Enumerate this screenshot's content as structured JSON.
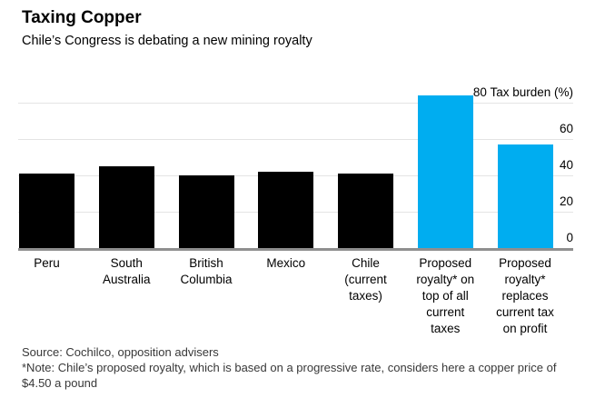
{
  "header": {
    "title": "Taxing Copper",
    "subtitle": "Chile’s Congress is debating a new mining royalty"
  },
  "chart_data": {
    "type": "bar",
    "title": "Taxing Copper",
    "subtitle": "Chile’s Congress is debating a new mining royalty",
    "ylabel": "Tax burden (%)",
    "xlabel": "",
    "ylim": [
      0,
      90
    ],
    "grid": true,
    "axis_side": "right",
    "legend": "none",
    "categories": [
      "Peru",
      "South Australia",
      "British Columbia",
      "Mexico",
      "Chile (current taxes)",
      "Proposed royalty* on top of all current taxes",
      "Proposed royalty* replaces current tax on profit"
    ],
    "category_lines": [
      [
        "Peru"
      ],
      [
        "South",
        "Australia"
      ],
      [
        "British",
        "Columbia"
      ],
      [
        "Mexico"
      ],
      [
        "Chile",
        "(current",
        "taxes)"
      ],
      [
        "Proposed",
        "royalty* on",
        "top of all",
        "current",
        "taxes"
      ],
      [
        "Proposed",
        "royalty*",
        "replaces",
        "current tax",
        "on profit"
      ]
    ],
    "values": [
      41,
      45,
      40,
      42,
      41,
      84,
      57
    ],
    "bar_colors": [
      "#000000",
      "#000000",
      "#000000",
      "#000000",
      "#000000",
      "#00adf0",
      "#00adf0"
    ],
    "yticks": [
      {
        "value": 0,
        "label": "0"
      },
      {
        "value": 20,
        "label": "20"
      },
      {
        "value": 40,
        "label": "40"
      },
      {
        "value": 60,
        "label": "60"
      },
      {
        "value": 80,
        "label": "80 Tax burden (%)"
      }
    ]
  },
  "footer": {
    "source": "Source: Cochilco, opposition advisers",
    "note": "*Note: Chile’s proposed royalty, which is based on a progressive rate, considers here a copper price of $4.50 a pound"
  },
  "colors": {
    "accent_blue": "#00adf0",
    "bar_black": "#000000",
    "gridline": "#e4e4e4",
    "baseline": "#8f8f8f",
    "text": "#000000",
    "footer_text": "#383838"
  }
}
